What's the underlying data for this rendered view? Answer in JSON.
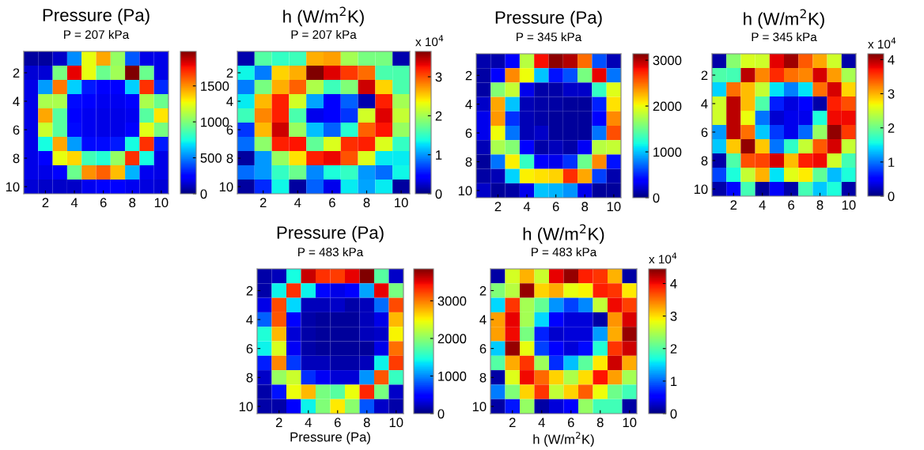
{
  "chart_data": [
    {
      "type": "heatmap",
      "title": "Pressure (Pa)",
      "subtitle": "P = 207 kPa",
      "categories": [
        null,
        "2",
        null,
        "4",
        null,
        "6",
        null,
        "8",
        null,
        "10"
      ],
      "y_categories": [
        null,
        "2",
        null,
        "4",
        null,
        "6",
        null,
        "8",
        null,
        "10"
      ],
      "clim": [
        0,
        1980
      ],
      "cticks": [
        0,
        500,
        1000,
        1500
      ],
      "cells": [
        [
          60,
          60,
          130,
          520,
          1250,
          1450,
          1050,
          420,
          180,
          180
        ],
        [
          150,
          150,
          980,
          1800,
          1250,
          950,
          1080,
          1980,
          950,
          180
        ],
        [
          180,
          550,
          1550,
          650,
          300,
          250,
          250,
          650,
          1700,
          330
        ],
        [
          180,
          1100,
          1100,
          270,
          220,
          200,
          200,
          250,
          1100,
          950
        ],
        [
          180,
          1450,
          900,
          250,
          200,
          180,
          180,
          200,
          900,
          1320
        ],
        [
          180,
          1180,
          900,
          270,
          200,
          180,
          180,
          250,
          1230,
          980
        ],
        [
          180,
          750,
          1450,
          550,
          270,
          270,
          300,
          750,
          1700,
          300
        ],
        [
          180,
          220,
          1250,
          1350,
          850,
          780,
          1050,
          1700,
          750,
          180
        ],
        [
          180,
          180,
          250,
          950,
          1500,
          1600,
          1400,
          600,
          200,
          180
        ],
        [
          150,
          130,
          130,
          130,
          200,
          220,
          220,
          200,
          170,
          150
        ]
      ]
    },
    {
      "type": "heatmap",
      "title": "h (W/m$^{2}$K)",
      "subtitle": "P = 207 kPa",
      "categories": [
        null,
        "2",
        null,
        "4",
        null,
        "6",
        null,
        "8",
        null,
        "10"
      ],
      "y_categories": [
        null,
        "2",
        null,
        "4",
        null,
        "6",
        null,
        "8",
        null,
        "10"
      ],
      "clim": [
        0,
        3.65
      ],
      "cticks": [
        0,
        1,
        2,
        3
      ],
      "clabel": "x 10$^{4}$",
      "cells": [
        [
          0.15,
          1.65,
          1.5,
          1.55,
          2.65,
          2.7,
          2.0,
          1.8,
          1.8,
          0.15
        ],
        [
          1.35,
          0.9,
          2.5,
          2.65,
          3.65,
          3.35,
          3.1,
          2.9,
          1.6,
          1.6
        ],
        [
          0.9,
          1.8,
          2.65,
          2.95,
          2.05,
          1.55,
          1.85,
          3.4,
          2.5,
          1.6
        ],
        [
          1.3,
          2.6,
          3.2,
          2.2,
          1.05,
          0.4,
          0.8,
          0.15,
          3.2,
          2.0
        ],
        [
          1.55,
          2.8,
          3.2,
          1.6,
          0.35,
          0.45,
          0.65,
          2.2,
          3.35,
          2.15
        ],
        [
          0.65,
          2.6,
          3.4,
          1.95,
          1.15,
          0.8,
          1.45,
          2.95,
          3.25,
          1.95
        ],
        [
          0.85,
          1.9,
          3.2,
          3.25,
          1.7,
          2.25,
          3.15,
          3.2,
          2.25,
          1.5
        ],
        [
          0.1,
          1.0,
          1.95,
          2.45,
          3.2,
          3.3,
          3.0,
          2.25,
          1.3,
          1.3
        ],
        [
          0.85,
          1.0,
          1.5,
          1.75,
          0.95,
          1.4,
          1.5,
          1.0,
          0.85,
          1.35
        ],
        [
          0.1,
          0.6,
          1.35,
          0.1,
          0.8,
          0.35,
          1.3,
          1.05,
          1.3,
          0.1
        ]
      ]
    },
    {
      "type": "heatmap",
      "title": "Pressure (Pa)",
      "subtitle": "P = 345 kPa",
      "categories": [
        null,
        "2",
        null,
        "4",
        null,
        "6",
        null,
        "8",
        null,
        "10"
      ],
      "y_categories": [
        null,
        "2",
        null,
        "4",
        null,
        "6",
        null,
        "8",
        null,
        "10"
      ],
      "clim": [
        0,
        3140
      ],
      "cticks": [
        0,
        1000,
        2000,
        3000
      ],
      "cells": [
        [
          130,
          130,
          400,
          1800,
          2800,
          3100,
          3000,
          2500,
          650,
          150
        ],
        [
          100,
          350,
          2400,
          2000,
          1000,
          450,
          650,
          1550,
          2850,
          750
        ],
        [
          100,
          1600,
          1850,
          300,
          120,
          120,
          200,
          200,
          1300,
          1950
        ],
        [
          200,
          2300,
          1000,
          150,
          120,
          100,
          80,
          80,
          500,
          2100
        ],
        [
          300,
          2350,
          550,
          150,
          120,
          80,
          80,
          80,
          350,
          2400
        ],
        [
          300,
          2000,
          750,
          150,
          200,
          80,
          80,
          80,
          750,
          2600
        ],
        [
          150,
          1750,
          1600,
          350,
          120,
          170,
          120,
          320,
          1800,
          1850
        ],
        [
          80,
          750,
          2050,
          1300,
          400,
          300,
          550,
          1500,
          2400,
          450
        ],
        [
          100,
          150,
          1050,
          2050,
          2100,
          2150,
          2700,
          2300,
          600,
          130
        ],
        [
          200,
          80,
          100,
          300,
          1000,
          950,
          850,
          300,
          80,
          80
        ]
      ]
    },
    {
      "type": "heatmap",
      "title": "h (W/m$^{2}$K)",
      "subtitle": "P = 345 kPa",
      "categories": [
        null,
        "2",
        null,
        "4",
        null,
        "6",
        null,
        "8",
        null,
        "10"
      ],
      "y_categories": [
        null,
        "2",
        null,
        "4",
        null,
        "6",
        null,
        "8",
        null,
        "10"
      ],
      "clim": [
        0,
        4.17
      ],
      "cticks": [
        0,
        1,
        2,
        3,
        4
      ],
      "clabel": "x 10$^{4}$",
      "cells": [
        [
          0.15,
          2.15,
          2.55,
          2.5,
          3.8,
          4.05,
          3.4,
          3.05,
          2.5,
          0.15
        ],
        [
          1.85,
          1.8,
          3.95,
          3.2,
          3.6,
          3.3,
          3.2,
          3.85,
          3.1,
          2.3
        ],
        [
          1.4,
          3.3,
          2.95,
          2.45,
          1.45,
          1.05,
          1.45,
          3.3,
          3.85,
          2.85
        ],
        [
          2.5,
          3.95,
          2.95,
          1.85,
          0.65,
          0.35,
          0.5,
          0.15,
          3.65,
          3.45
        ],
        [
          2.5,
          3.95,
          2.65,
          1.0,
          0.3,
          0.4,
          0.4,
          1.6,
          3.75,
          3.75
        ],
        [
          1.15,
          3.95,
          3.3,
          1.35,
          0.75,
          0.4,
          0.95,
          2.2,
          4.1,
          3.55
        ],
        [
          1.35,
          2.9,
          4.1,
          2.9,
          1.0,
          1.7,
          2.45,
          3.4,
          3.85,
          2.45
        ],
        [
          0.15,
          1.85,
          3.45,
          3.5,
          3.85,
          2.95,
          3.65,
          3.75,
          2.5,
          1.8
        ],
        [
          0.8,
          1.6,
          2.45,
          3.0,
          1.45,
          2.6,
          2.75,
          1.95,
          1.3,
          1.6
        ],
        [
          0.15,
          0.55,
          1.8,
          0.1,
          0.45,
          0.15,
          1.8,
          1.35,
          1.6,
          0.15
        ]
      ]
    },
    {
      "type": "heatmap",
      "title": "Pressure (Pa)",
      "subtitle": "P = 483 kPa",
      "xlabel": "Pressure (Pa)",
      "categories": [
        null,
        "2",
        null,
        "4",
        null,
        "6",
        null,
        "8",
        null,
        "10"
      ],
      "y_categories": [
        null,
        "2",
        null,
        "4",
        null,
        "6",
        null,
        "8",
        null,
        "10"
      ],
      "clim": [
        0,
        3850
      ],
      "cticks": [
        0,
        1000,
        2000,
        3000
      ],
      "cells": [
        [
          150,
          200,
          1450,
          3600,
          3300,
          3250,
          3500,
          3850,
          1750,
          250
        ],
        [
          150,
          1400,
          3300,
          1400,
          500,
          350,
          450,
          1100,
          3500,
          1900
        ],
        [
          350,
          3200,
          1300,
          200,
          200,
          250,
          150,
          200,
          900,
          3200
        ],
        [
          850,
          3150,
          450,
          150,
          100,
          100,
          100,
          200,
          350,
          2750
        ],
        [
          1500,
          2750,
          300,
          150,
          100,
          100,
          100,
          200,
          250,
          2500
        ],
        [
          1400,
          2350,
          400,
          150,
          100,
          100,
          100,
          100,
          350,
          3050
        ],
        [
          600,
          2950,
          700,
          200,
          200,
          150,
          150,
          200,
          1400,
          3250
        ],
        [
          250,
          2050,
          2300,
          650,
          400,
          300,
          300,
          1050,
          3150,
          1600
        ],
        [
          150,
          550,
          2450,
          2750,
          1900,
          1750,
          2450,
          3350,
          1900,
          250
        ],
        [
          150,
          150,
          450,
          1400,
          1950,
          2550,
          2000,
          800,
          250,
          150
        ]
      ]
    },
    {
      "type": "heatmap",
      "title": "h (W/m$^{2}$K)",
      "subtitle": "P = 483 kPa",
      "xlabel": "h (W/m$^{2}$K)",
      "categories": [
        null,
        "2",
        null,
        "4",
        null,
        "6",
        null,
        "8",
        null,
        "10"
      ],
      "y_categories": [
        null,
        "2",
        null,
        "4",
        null,
        "6",
        null,
        "8",
        null,
        "10"
      ],
      "clim": [
        0,
        4.45
      ],
      "cticks": [
        0,
        1,
        2,
        3,
        4
      ],
      "clabel": "x 10$^{4}$",
      "cells": [
        [
          0.15,
          2.7,
          3.2,
          2.65,
          4.05,
          4.35,
          3.9,
          3.8,
          3.2,
          0.15
        ],
        [
          2.25,
          2.55,
          4.35,
          3.05,
          3.25,
          2.8,
          2.9,
          3.9,
          3.8,
          2.95
        ],
        [
          1.5,
          3.8,
          2.45,
          2.1,
          1.2,
          0.85,
          1.15,
          2.6,
          4.0,
          3.75
        ],
        [
          3.3,
          4.05,
          2.45,
          1.5,
          0.5,
          0.35,
          0.35,
          0.15,
          3.35,
          4.1
        ],
        [
          3.3,
          4.0,
          2.2,
          0.7,
          0.3,
          0.35,
          0.35,
          1.25,
          3.25,
          4.35
        ],
        [
          1.45,
          4.35,
          2.8,
          0.85,
          0.55,
          0.35,
          0.6,
          1.75,
          3.8,
          4.15
        ],
        [
          2.0,
          3.25,
          3.8,
          2.4,
          0.75,
          1.4,
          2.05,
          2.95,
          4.15,
          3.25
        ],
        [
          0.15,
          2.75,
          4.0,
          3.55,
          3.05,
          2.5,
          3.0,
          3.95,
          3.3,
          2.45
        ],
        [
          1.1,
          2.25,
          3.05,
          3.8,
          2.6,
          3.05,
          3.6,
          2.85,
          2.15,
          1.9
        ],
        [
          0.15,
          0.65,
          2.35,
          0.15,
          0.35,
          0.5,
          2.35,
          1.9,
          1.9,
          0.15
        ]
      ]
    }
  ]
}
